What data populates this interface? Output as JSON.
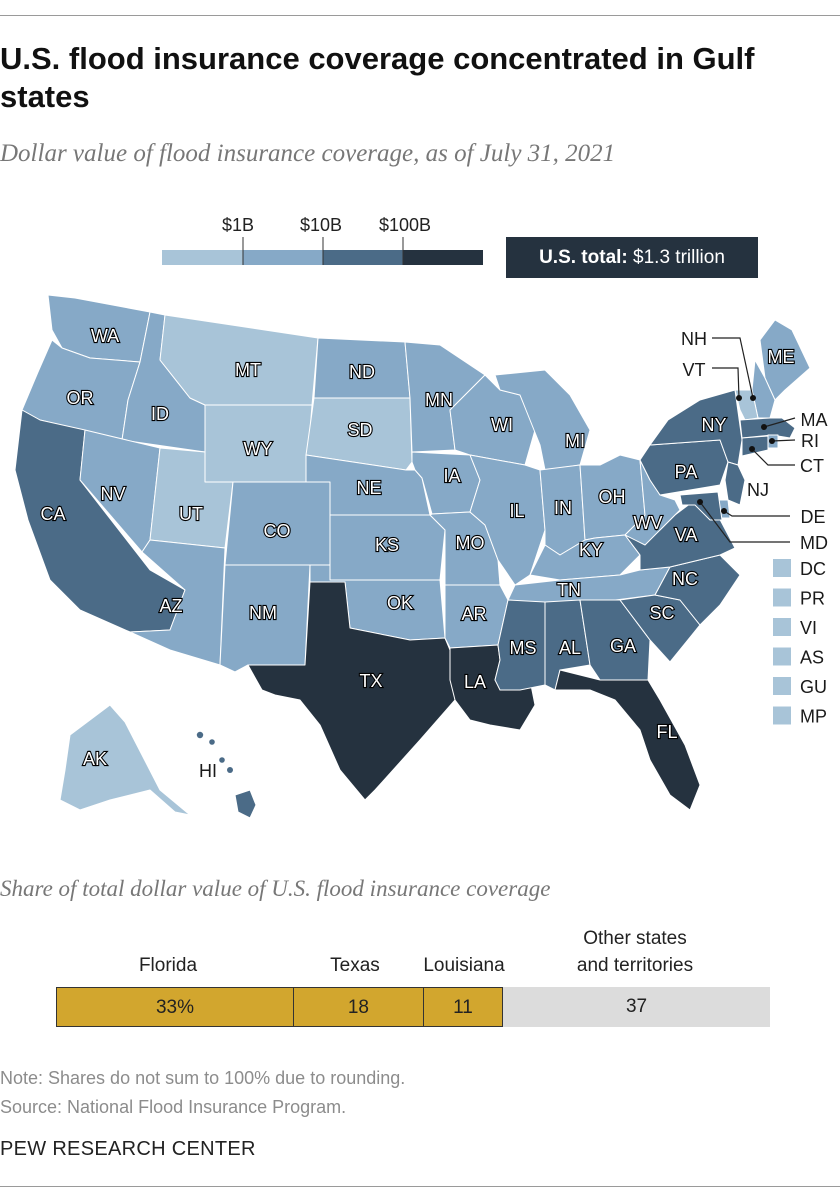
{
  "title": "U.S. flood insurance coverage concentrated in Gulf states",
  "subtitle": "Dollar value of flood insurance coverage, as of July 31, 2021",
  "colors": {
    "tier1": "#a8c4d8",
    "tier2": "#86a9c7",
    "tier3": "#4b6b87",
    "tier4": "#25323f",
    "gold": "#d2a62e",
    "gray": "#dcdcdc"
  },
  "legend": {
    "ticks": [
      "$1B",
      "$10B",
      "$100B"
    ],
    "total_label": "U.S. total:",
    "total_value": "$1.3 trillion"
  },
  "states": [
    {
      "abbr": "WA",
      "tier": 2
    },
    {
      "abbr": "OR",
      "tier": 2
    },
    {
      "abbr": "CA",
      "tier": 3
    },
    {
      "abbr": "ID",
      "tier": 2
    },
    {
      "abbr": "NV",
      "tier": 2
    },
    {
      "abbr": "MT",
      "tier": 1
    },
    {
      "abbr": "WY",
      "tier": 1
    },
    {
      "abbr": "UT",
      "tier": 1
    },
    {
      "abbr": "CO",
      "tier": 2
    },
    {
      "abbr": "AZ",
      "tier": 2
    },
    {
      "abbr": "NM",
      "tier": 2
    },
    {
      "abbr": "ND",
      "tier": 2
    },
    {
      "abbr": "SD",
      "tier": 1
    },
    {
      "abbr": "NE",
      "tier": 2
    },
    {
      "abbr": "KS",
      "tier": 2
    },
    {
      "abbr": "OK",
      "tier": 2
    },
    {
      "abbr": "TX",
      "tier": 4
    },
    {
      "abbr": "MN",
      "tier": 2
    },
    {
      "abbr": "IA",
      "tier": 2
    },
    {
      "abbr": "MO",
      "tier": 2
    },
    {
      "abbr": "AR",
      "tier": 2
    },
    {
      "abbr": "LA",
      "tier": 4
    },
    {
      "abbr": "WI",
      "tier": 2
    },
    {
      "abbr": "IL",
      "tier": 2
    },
    {
      "abbr": "MI",
      "tier": 2
    },
    {
      "abbr": "IN",
      "tier": 2
    },
    {
      "abbr": "OH",
      "tier": 2
    },
    {
      "abbr": "KY",
      "tier": 2
    },
    {
      "abbr": "TN",
      "tier": 2
    },
    {
      "abbr": "MS",
      "tier": 3
    },
    {
      "abbr": "AL",
      "tier": 3
    },
    {
      "abbr": "GA",
      "tier": 3
    },
    {
      "abbr": "FL",
      "tier": 4
    },
    {
      "abbr": "SC",
      "tier": 3
    },
    {
      "abbr": "NC",
      "tier": 3
    },
    {
      "abbr": "VA",
      "tier": 3
    },
    {
      "abbr": "WV",
      "tier": 2
    },
    {
      "abbr": "PA",
      "tier": 3
    },
    {
      "abbr": "NY",
      "tier": 3
    },
    {
      "abbr": "ME",
      "tier": 2
    },
    {
      "abbr": "NH",
      "tier": 2
    },
    {
      "abbr": "VT",
      "tier": 1
    },
    {
      "abbr": "MA",
      "tier": 3
    },
    {
      "abbr": "RI",
      "tier": 2
    },
    {
      "abbr": "CT",
      "tier": 3
    },
    {
      "abbr": "NJ",
      "tier": 3
    },
    {
      "abbr": "DE",
      "tier": 2
    },
    {
      "abbr": "MD",
      "tier": 3
    },
    {
      "abbr": "AK",
      "tier": 1
    },
    {
      "abbr": "HI",
      "tier": 3
    }
  ],
  "territories": [
    {
      "abbr": "DC",
      "tier": 1
    },
    {
      "abbr": "PR",
      "tier": 1
    },
    {
      "abbr": "VI",
      "tier": 1
    },
    {
      "abbr": "AS",
      "tier": 1
    },
    {
      "abbr": "GU",
      "tier": 1
    },
    {
      "abbr": "MP",
      "tier": 1
    }
  ],
  "share": {
    "title": "Share of total dollar value of U.S. flood insurance coverage",
    "segments": [
      {
        "label": "Florida",
        "display": "33%",
        "value": 33
      },
      {
        "label": "Texas",
        "display": "18",
        "value": 18
      },
      {
        "label": "Louisiana",
        "display": "11",
        "value": 11
      },
      {
        "label": "Other states\nand territories",
        "display": "37",
        "value": 37
      }
    ]
  },
  "note": "Note: Shares do not sum to 100% due to rounding.",
  "source": "Source: National Flood Insurance Program.",
  "brand": "PEW RESEARCH CENTER"
}
